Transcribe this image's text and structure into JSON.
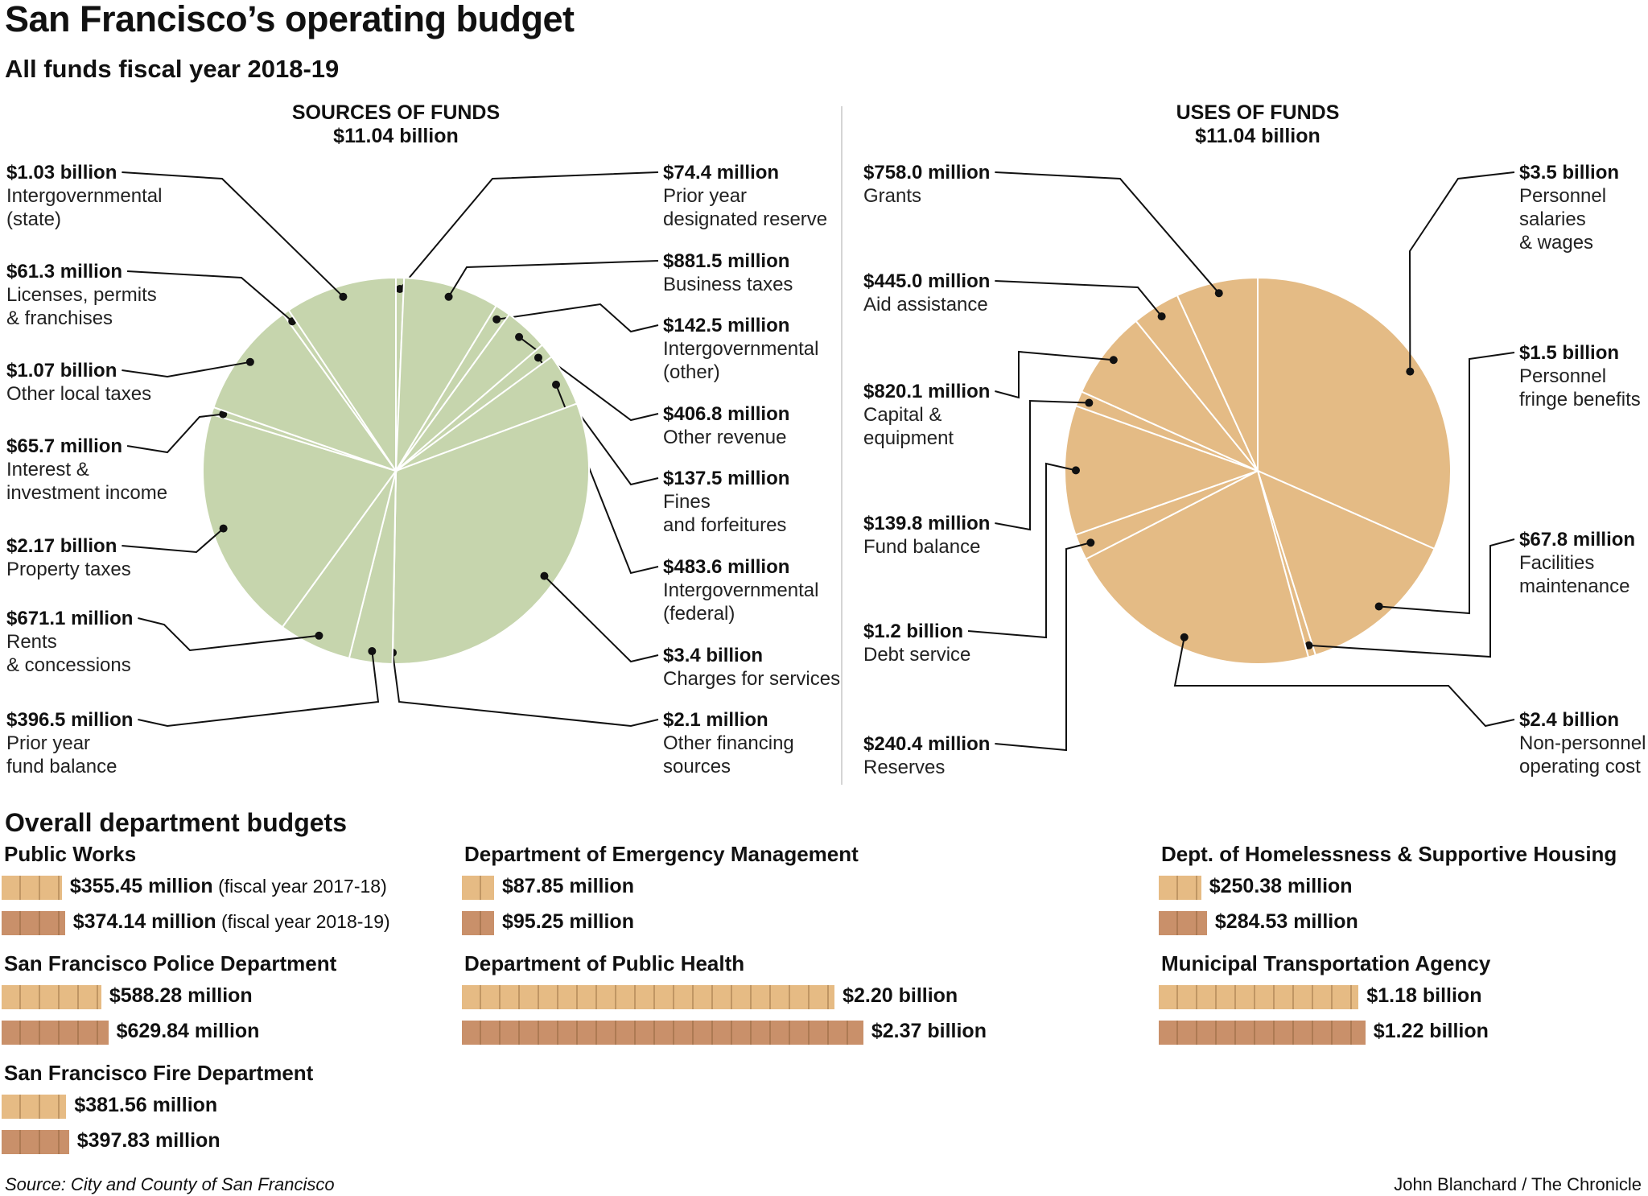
{
  "title": "San Francisco’s operating budget",
  "subtitle": "All funds fiscal year 2018-19",
  "colors": {
    "sources_pie": "#c6d5ad",
    "uses_pie": "#e4bb85",
    "bar_2017_18": "#e6bb84",
    "bar_2018_19": "#c9906a"
  },
  "chart_data": [
    {
      "type": "pie",
      "title": "SOURCES OF FUNDS",
      "total": "$11.04 billion",
      "slices": [
        {
          "value_label": "$74.4 million",
          "label": [
            "Prior year",
            "designated reserve"
          ],
          "value": 74.4
        },
        {
          "value_label": "$881.5 million",
          "label": [
            "Business taxes"
          ],
          "value": 881.5
        },
        {
          "value_label": "$142.5 million",
          "label": [
            "Intergovernmental",
            "(other)"
          ],
          "value": 142.5
        },
        {
          "value_label": "$406.8 million",
          "label": [
            "Other revenue"
          ],
          "value": 406.8
        },
        {
          "value_label": "$137.5 million",
          "label": [
            "Fines",
            "and forfeitures"
          ],
          "value": 137.5
        },
        {
          "value_label": "$483.6 million",
          "label": [
            "Intergovernmental",
            "(federal)"
          ],
          "value": 483.6
        },
        {
          "value_label": "$3.4 billion",
          "label": [
            "Charges for services"
          ],
          "value": 3400
        },
        {
          "value_label": "$2.1 million",
          "label": [
            "Other financing",
            "sources"
          ],
          "value": 2.1
        },
        {
          "value_label": "$396.5 million",
          "label": [
            "Prior year",
            "fund balance"
          ],
          "value": 396.5
        },
        {
          "value_label": "$671.1 million",
          "label": [
            "Rents",
            "& concessions"
          ],
          "value": 671.1
        },
        {
          "value_label": "$2.17 billion",
          "label": [
            "Property taxes"
          ],
          "value": 2170
        },
        {
          "value_label": "$65.7 million",
          "label": [
            "Interest &",
            "investment income"
          ],
          "value": 65.7
        },
        {
          "value_label": "$1.07 billion",
          "label": [
            "Other local taxes"
          ],
          "value": 1070
        },
        {
          "value_label": "$61.3 million",
          "label": [
            "Licenses, permits",
            "& franchises"
          ],
          "value": 61.3
        },
        {
          "value_label": "$1.03 billion",
          "label": [
            "Intergovernmental",
            "(state)"
          ],
          "value": 1030
        }
      ]
    },
    {
      "type": "pie",
      "title": "USES OF FUNDS",
      "total": "$11.04 billion",
      "slices": [
        {
          "value_label": "$3.5 billion",
          "label": [
            "Personnel",
            "salaries",
            "& wages"
          ],
          "value": 3500
        },
        {
          "value_label": "$1.5 billion",
          "label": [
            "Personnel",
            "fringe benefits"
          ],
          "value": 1500
        },
        {
          "value_label": "$67.8 million",
          "label": [
            "Facilities",
            "maintenance"
          ],
          "value": 67.8
        },
        {
          "value_label": "$2.4 billion",
          "label": [
            "Non-personnel",
            "operating cost"
          ],
          "value": 2400
        },
        {
          "value_label": "$240.4 million",
          "label": [
            "Reserves"
          ],
          "value": 240.4
        },
        {
          "value_label": "$1.2 billion",
          "label": [
            "Debt service"
          ],
          "value": 1200
        },
        {
          "value_label": "$139.8 million",
          "label": [
            "Fund balance"
          ],
          "value": 139.8
        },
        {
          "value_label": "$820.1 million",
          "label": [
            "Capital &",
            "equipment"
          ],
          "value": 820.1
        },
        {
          "value_label": "$445.0 million",
          "label": [
            "Aid assistance"
          ],
          "value": 445.0
        },
        {
          "value_label": "$758.0 million",
          "label": [
            "Grants"
          ],
          "value": 758.0
        }
      ]
    },
    {
      "type": "bar",
      "title": "Overall department budgets",
      "series": [
        {
          "name": "(fiscal year 2017-18)"
        },
        {
          "name": "(fiscal year 2018-19)"
        }
      ],
      "departments": [
        {
          "name": "Public Works",
          "values_millions": [
            355.45,
            374.14
          ],
          "labels": [
            "$355.45 million",
            "$374.14 million"
          ],
          "notes": [
            "(fiscal year 2017-18)",
            "(fiscal year 2018-19)"
          ]
        },
        {
          "name": "San Francisco Police Department",
          "values_millions": [
            588.28,
            629.84
          ],
          "labels": [
            "$588.28 million",
            "$629.84 million"
          ]
        },
        {
          "name": "San Francisco Fire Department",
          "values_millions": [
            381.56,
            397.83
          ],
          "labels": [
            "$381.56 million",
            "$397.83 million"
          ]
        },
        {
          "name": "Department of Emergency Management",
          "values_millions": [
            87.85,
            95.25
          ],
          "labels": [
            "$87.85 million",
            "$95.25 million"
          ]
        },
        {
          "name": "Department of Public Health",
          "values_millions": [
            2200,
            2370
          ],
          "labels": [
            "$2.20 billion",
            "$2.37 billion"
          ]
        },
        {
          "name": "Dept. of Homelessness & Supportive Housing",
          "values_millions": [
            250.38,
            284.53
          ],
          "labels": [
            "$250.38 million",
            "$284.53 million"
          ]
        },
        {
          "name": "Municipal Transportation Agency",
          "values_millions": [
            1180,
            1220
          ],
          "labels": [
            "$1.18 billion",
            "$1.22 billion"
          ]
        }
      ]
    }
  ],
  "footer": {
    "source": "Source: City and County of San Francisco",
    "credit": "John Blanchard / The Chronicle"
  }
}
